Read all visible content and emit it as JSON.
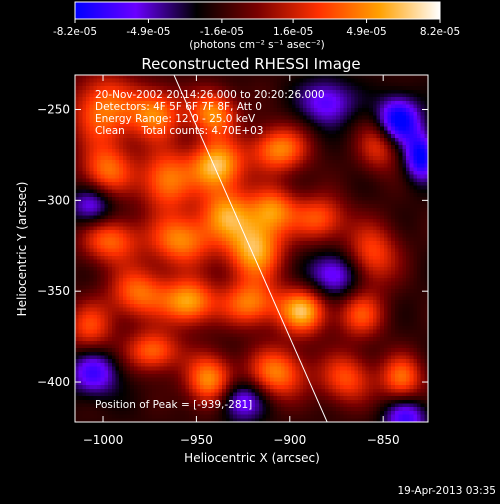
{
  "colorbar": {
    "tick_labels": [
      "-8.2e-05",
      "-4.9e-05",
      "-1.6e-05",
      "1.6e-05",
      "4.9e-05",
      "8.2e-05"
    ],
    "tick_values": [
      -8.2e-05,
      -4.9e-05,
      -1.6e-05,
      1.6e-05,
      4.9e-05,
      8.2e-05
    ],
    "range": [
      -8.2e-05,
      8.2e-05
    ],
    "units_label": "(photons cm⁻² s⁻¹ asec⁻²)",
    "stops": [
      "#0000ff",
      "#6a00ff",
      "#000000",
      "#7a0000",
      "#ff3000",
      "#ffa000",
      "#ffffff"
    ]
  },
  "annotations": {
    "time_range": "20-Nov-2002 20:14:26.000 to 20:20:26.000",
    "detectors": "Detectors: 4F 5F 6F 7F 8F, Att 0",
    "energy": "Energy Range: 12.0 - 25.0 keV",
    "clean": "Clean     Total counts: 4.70E+03",
    "peak": "Position of Peak = [-939,-281]"
  },
  "footer": {
    "date": "19-Apr-2013 03:35"
  },
  "chart_data": {
    "type": "heatmap",
    "title": "Reconstructed RHESSI Image",
    "xlabel": "Heliocentric X (arcsec)",
    "ylabel": "Heliocentric Y (arcsec)",
    "xlim": [
      -1015,
      -826
    ],
    "ylim": [
      -422,
      -231
    ],
    "xticks": [
      -1000,
      -950,
      -900,
      -850
    ],
    "yticks": [
      -250,
      -300,
      -350,
      -400
    ],
    "xtick_labels": [
      "−1000",
      "−950",
      "−900",
      "−850"
    ],
    "ytick_labels": [
      "−250",
      "−300",
      "−350",
      "−400"
    ],
    "peak_position": [
      -939,
      -281
    ],
    "limb_line": [
      [
        -962,
        -231
      ],
      [
        -880,
        -422
      ]
    ],
    "hot_spots": [
      {
        "x": -1000,
        "y": -250,
        "value": 0.75,
        "sx": 12,
        "sy": 14
      },
      {
        "x": -972,
        "y": -252,
        "value": 0.78,
        "sx": 10,
        "sy": 10
      },
      {
        "x": -941,
        "y": -252,
        "value": 0.82,
        "sx": 9,
        "sy": 9
      },
      {
        "x": -998,
        "y": -284,
        "value": 0.7,
        "sx": 10,
        "sy": 10
      },
      {
        "x": -966,
        "y": -289,
        "value": 0.78,
        "sx": 10,
        "sy": 12
      },
      {
        "x": -939,
        "y": -281,
        "value": 1.0,
        "sx": 10,
        "sy": 10
      },
      {
        "x": -906,
        "y": -272,
        "value": 0.8,
        "sx": 11,
        "sy": 9
      },
      {
        "x": -934,
        "y": -307,
        "value": 0.75,
        "sx": 10,
        "sy": 10
      },
      {
        "x": -909,
        "y": -305,
        "value": 0.72,
        "sx": 9,
        "sy": 9
      },
      {
        "x": -996,
        "y": -322,
        "value": 0.7,
        "sx": 11,
        "sy": 9
      },
      {
        "x": -958,
        "y": -322,
        "value": 0.8,
        "sx": 12,
        "sy": 10
      },
      {
        "x": -919,
        "y": -327,
        "value": 0.95,
        "sx": 11,
        "sy": 12
      },
      {
        "x": -884,
        "y": -310,
        "value": 0.65,
        "sx": 10,
        "sy": 9
      },
      {
        "x": -856,
        "y": -330,
        "value": 0.62,
        "sx": 10,
        "sy": 12
      },
      {
        "x": -981,
        "y": -351,
        "value": 0.72,
        "sx": 11,
        "sy": 10
      },
      {
        "x": -954,
        "y": -356,
        "value": 0.9,
        "sx": 10,
        "sy": 9
      },
      {
        "x": -921,
        "y": -357,
        "value": 0.75,
        "sx": 11,
        "sy": 9
      },
      {
        "x": -893,
        "y": -361,
        "value": 0.95,
        "sx": 9,
        "sy": 9
      },
      {
        "x": -862,
        "y": -363,
        "value": 0.6,
        "sx": 9,
        "sy": 9
      },
      {
        "x": -1007,
        "y": -370,
        "value": 0.58,
        "sx": 9,
        "sy": 10
      },
      {
        "x": -973,
        "y": -383,
        "value": 0.72,
        "sx": 10,
        "sy": 8
      },
      {
        "x": -943,
        "y": -399,
        "value": 0.85,
        "sx": 9,
        "sy": 10
      },
      {
        "x": -907,
        "y": -395,
        "value": 0.78,
        "sx": 11,
        "sy": 10
      },
      {
        "x": -870,
        "y": -398,
        "value": 0.62,
        "sx": 10,
        "sy": 10
      },
      {
        "x": -840,
        "y": -398,
        "value": 0.72,
        "sx": 8,
        "sy": 9
      },
      {
        "x": -852,
        "y": -270,
        "value": 0.52,
        "sx": 8,
        "sy": 10
      }
    ],
    "cold_spots": [
      {
        "x": -880,
        "y": -246,
        "value": -0.55,
        "sx": 10,
        "sy": 9
      },
      {
        "x": -842,
        "y": -256,
        "value": -0.9,
        "sx": 8,
        "sy": 9
      },
      {
        "x": -830,
        "y": -276,
        "value": -0.8,
        "sx": 6,
        "sy": 9
      },
      {
        "x": -1006,
        "y": -303,
        "value": -0.55,
        "sx": 8,
        "sy": 8
      },
      {
        "x": -876,
        "y": -341,
        "value": -0.6,
        "sx": 10,
        "sy": 9
      },
      {
        "x": -1005,
        "y": -395,
        "value": -0.6,
        "sx": 9,
        "sy": 9
      },
      {
        "x": -838,
        "y": -420,
        "value": -0.6,
        "sx": 8,
        "sy": 8
      },
      {
        "x": -926,
        "y": -410,
        "value": -0.6,
        "sx": 9,
        "sy": 8
      }
    ]
  }
}
